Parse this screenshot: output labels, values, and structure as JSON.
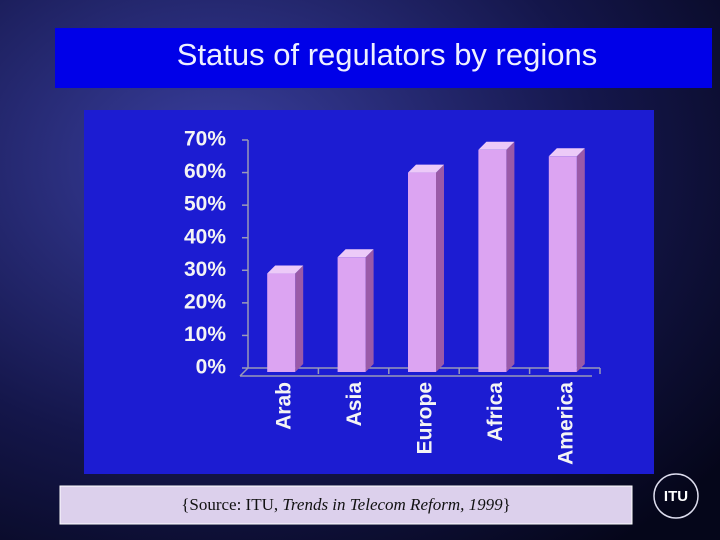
{
  "slide": {
    "title": "Status of regulators by regions",
    "source": {
      "before": "{Source: ITU, ",
      "italic": "Trends in Telecom Reform, 1999",
      "after": "}"
    },
    "logo": "ITU"
  },
  "chart_data": {
    "type": "bar",
    "categories": [
      "Arab",
      "Asia",
      "Europe",
      "Africa",
      "America"
    ],
    "values": [
      29,
      34,
      60,
      67,
      65
    ],
    "color": "#dca4f2",
    "ylim": [
      0,
      70
    ],
    "yticks": [
      {
        "value": 0,
        "label": "0%"
      },
      {
        "value": 10,
        "label": "10%"
      },
      {
        "value": 20,
        "label": "20%"
      },
      {
        "value": 30,
        "label": "30%"
      },
      {
        "value": 40,
        "label": "40%"
      },
      {
        "value": 50,
        "label": "50%"
      },
      {
        "value": 60,
        "label": "60%"
      },
      {
        "value": 70,
        "label": "70%"
      }
    ],
    "grid": false
  }
}
